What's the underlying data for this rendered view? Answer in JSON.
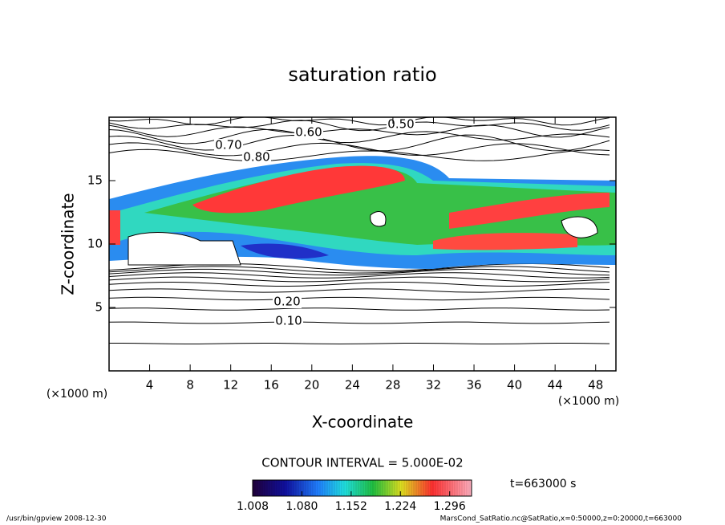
{
  "chart_data": {
    "type": "contour",
    "title": "saturation ratio",
    "x_label": "X-coordinate",
    "y_label": "Z-coordinate",
    "x_unit": "(×1000 m)",
    "y_unit": "(×1000 m)",
    "xlim": [
      0,
      50
    ],
    "ylim": [
      0,
      20
    ],
    "xticks": [
      4,
      8,
      12,
      16,
      20,
      24,
      28,
      32,
      36,
      40,
      44,
      48
    ],
    "yticks": [
      5,
      10,
      15
    ],
    "contour_levels": [
      {
        "value": 0.1,
        "label": "0.10"
      },
      {
        "value": 0.2,
        "label": "0.20"
      },
      {
        "value": 0.5,
        "label": "0.50"
      },
      {
        "value": 0.6,
        "label": "0.60"
      },
      {
        "value": 0.7,
        "label": "0.70"
      },
      {
        "value": 0.8,
        "label": "0.80"
      }
    ],
    "contour_interval": "CONTOUR INTERVAL = 5.000E-02",
    "time": "t=663000 s",
    "colorbar": {
      "lim": [
        1.008,
        1.328
      ],
      "ticks": [
        1.008,
        {
          "value": 1.08,
          "label": "1.080"
        },
        1.152,
        1.224,
        1.296
      ]
    },
    "footer_left": "/usr/bin/gpview  2008-12-30",
    "footer_right": "MarsCond_SatRatio.nc@SatRatio,x=0:50000,z=0:20000,t=663000"
  }
}
